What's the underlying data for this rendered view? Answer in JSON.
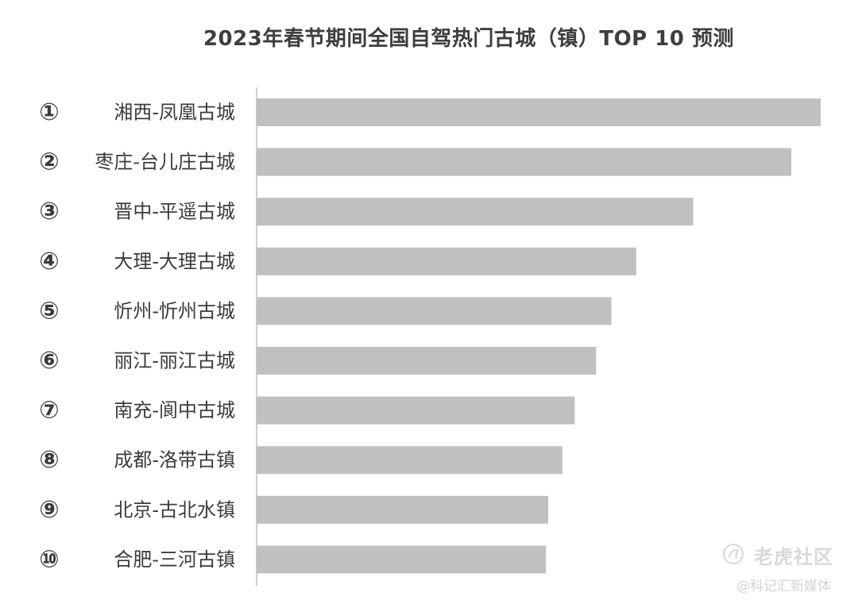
{
  "chart_data": {
    "type": "bar",
    "orientation": "horizontal",
    "title": "2023年春节期间全国自驾热门古城（镇）TOP 10 预测",
    "ranks": [
      "①",
      "②",
      "③",
      "④",
      "⑤",
      "⑥",
      "⑦",
      "⑧",
      "⑨",
      "⑩"
    ],
    "categories": [
      "湘西-凤凰古城",
      "枣庄-台儿庄古城",
      "晋中-平遥古城",
      "大理-大理古城",
      "忻州-忻州古城",
      "丽江-丽江古城",
      "南充-阆中古城",
      "成都-洛带古镇",
      "北京-古北水镇",
      "合肥-三河古镇"
    ],
    "values": [
      100,
      94.8,
      77.4,
      67.3,
      62.9,
      60.2,
      56.4,
      54.2,
      51.7,
      51.3
    ],
    "xlim": [
      0,
      100
    ],
    "bar_color": "#c0c0c0",
    "axis_color": "#bdbdbd",
    "grid": false,
    "legend": "none"
  },
  "watermark": {
    "brand": "老虎社区",
    "sub": "@科记汇新媒体",
    "logo_icon": "tiger-paw-icon"
  }
}
